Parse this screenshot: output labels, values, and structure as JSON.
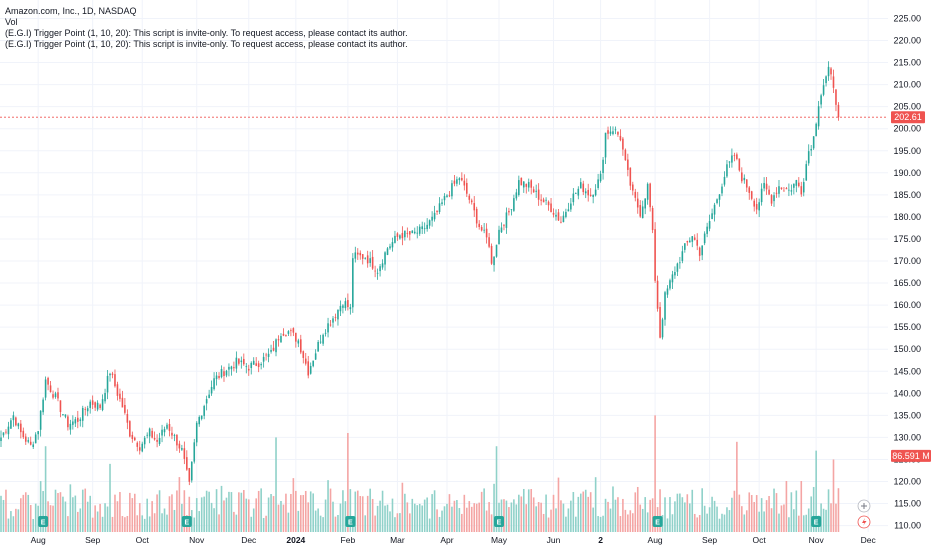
{
  "legend": {
    "title": "Amazon.com, Inc., 1D, NASDAQ",
    "vol": "Vol",
    "indicator1": "(E.G.I) Trigger Point  (1, 10, 20): This script is invite-only. To request access, please contact its author.",
    "indicator2": "(E.G.I) Trigger Point  (1, 10, 20): This script is invite-only. To request access, please contact its author."
  },
  "colors": {
    "up": "#26a69a",
    "down": "#ef5350",
    "vol_up": "#8fd1c9",
    "vol_down": "#f4a5a4",
    "grid": "#f0f3fa",
    "badge": "#26a69a"
  },
  "price_tag": "202.61",
  "volume_tag": "86.591 M",
  "chart_data": {
    "type": "candlestick",
    "title": "Amazon.com, Inc., 1D, NASDAQ",
    "ylim": [
      108,
      227
    ],
    "y_ticks": [
      "110.00",
      "115.00",
      "120.00",
      "125.00",
      "130.00",
      "135.00",
      "140.00",
      "145.00",
      "150.00",
      "155.00",
      "160.00",
      "165.00",
      "170.00",
      "175.00",
      "180.00",
      "185.00",
      "190.00",
      "195.00",
      "200.00",
      "205.00",
      "210.00",
      "215.00",
      "220.00",
      "225.00"
    ],
    "x_ticks": [
      {
        "label": "Aug",
        "day": 15,
        "bold": false
      },
      {
        "label": "Sep",
        "day": 37,
        "bold": false
      },
      {
        "label": "Oct",
        "day": 57,
        "bold": false
      },
      {
        "label": "Nov",
        "day": 79,
        "bold": false
      },
      {
        "label": "Dec",
        "day": 100,
        "bold": false
      },
      {
        "label": "2024",
        "day": 119,
        "bold": true
      },
      {
        "label": "Feb",
        "day": 140,
        "bold": false
      },
      {
        "label": "Mar",
        "day": 160,
        "bold": false
      },
      {
        "label": "Apr",
        "day": 180,
        "bold": false
      },
      {
        "label": "May",
        "day": 201,
        "bold": false
      },
      {
        "label": "Jun",
        "day": 223,
        "bold": false
      },
      {
        "label": "2",
        "day": 242,
        "bold": true
      },
      {
        "label": "Aug",
        "day": 264,
        "bold": false
      },
      {
        "label": "Sep",
        "day": 286,
        "bold": false
      },
      {
        "label": "Oct",
        "day": 306,
        "bold": false
      },
      {
        "label": "Nov",
        "day": 329,
        "bold": false
      },
      {
        "label": "Dec",
        "day": 350,
        "bold": false
      }
    ],
    "last_price": 202.61,
    "earnings_days": [
      17,
      75,
      141,
      201,
      265,
      329
    ],
    "keypoints": [
      [
        0,
        130
      ],
      [
        5,
        135
      ],
      [
        8,
        131
      ],
      [
        12,
        128
      ],
      [
        15,
        132
      ],
      [
        18,
        143
      ],
      [
        22,
        139
      ],
      [
        27,
        133
      ],
      [
        31,
        134
      ],
      [
        36,
        138
      ],
      [
        40,
        137
      ],
      [
        44,
        145
      ],
      [
        47,
        140
      ],
      [
        49,
        137
      ],
      [
        52,
        131
      ],
      [
        56,
        128
      ],
      [
        60,
        131
      ],
      [
        63,
        129
      ],
      [
        67,
        133
      ],
      [
        70,
        130
      ],
      [
        73,
        127
      ],
      [
        76,
        119
      ],
      [
        79,
        133
      ],
      [
        83,
        139
      ],
      [
        86,
        143
      ],
      [
        90,
        145
      ],
      [
        95,
        147
      ],
      [
        100,
        146
      ],
      [
        104,
        147
      ],
      [
        109,
        149
      ],
      [
        113,
        154
      ],
      [
        116,
        154
      ],
      [
        120,
        152
      ],
      [
        124,
        145
      ],
      [
        126,
        148
      ],
      [
        130,
        154
      ],
      [
        135,
        158
      ],
      [
        138,
        161
      ],
      [
        141,
        159
      ],
      [
        142,
        171
      ],
      [
        147,
        171
      ],
      [
        152,
        168
      ],
      [
        156,
        173
      ],
      [
        161,
        176
      ],
      [
        166,
        176
      ],
      [
        170,
        177
      ],
      [
        175,
        180
      ],
      [
        180,
        185
      ],
      [
        185,
        189
      ],
      [
        189,
        184
      ],
      [
        193,
        178
      ],
      [
        197,
        174
      ],
      [
        198,
        169
      ],
      [
        201,
        177
      ],
      [
        205,
        181
      ],
      [
        209,
        188
      ],
      [
        213,
        187
      ],
      [
        218,
        184
      ],
      [
        222,
        182
      ],
      [
        226,
        179
      ],
      [
        230,
        184
      ],
      [
        234,
        187
      ],
      [
        238,
        185
      ],
      [
        242,
        189
      ],
      [
        244,
        199
      ],
      [
        247,
        200
      ],
      [
        250,
        198
      ],
      [
        252,
        192
      ],
      [
        255,
        185
      ],
      [
        258,
        181
      ],
      [
        261,
        187
      ],
      [
        262,
        182
      ],
      [
        263,
        176
      ],
      [
        264,
        166
      ],
      [
        266,
        153
      ],
      [
        268,
        162
      ],
      [
        272,
        168
      ],
      [
        276,
        173
      ],
      [
        279,
        176
      ],
      [
        282,
        172
      ],
      [
        286,
        179
      ],
      [
        290,
        186
      ],
      [
        293,
        191
      ],
      [
        296,
        194
      ],
      [
        299,
        189
      ],
      [
        302,
        186
      ],
      [
        305,
        182
      ],
      [
        308,
        187
      ],
      [
        311,
        184
      ],
      [
        314,
        187
      ],
      [
        318,
        186
      ],
      [
        321,
        188
      ],
      [
        323,
        186
      ],
      [
        326,
        195
      ],
      [
        328,
        198
      ],
      [
        330,
        206
      ],
      [
        332,
        210
      ],
      [
        334,
        213
      ],
      [
        336,
        210
      ],
      [
        338,
        203
      ]
    ],
    "volume_spikes": [
      [
        18,
        128
      ],
      [
        44,
        124
      ],
      [
        72,
        121
      ],
      [
        111,
        130
      ],
      [
        140,
        131
      ],
      [
        200,
        128
      ],
      [
        264,
        135
      ],
      [
        297,
        129
      ],
      [
        329,
        127
      ],
      [
        336,
        125
      ]
    ]
  }
}
